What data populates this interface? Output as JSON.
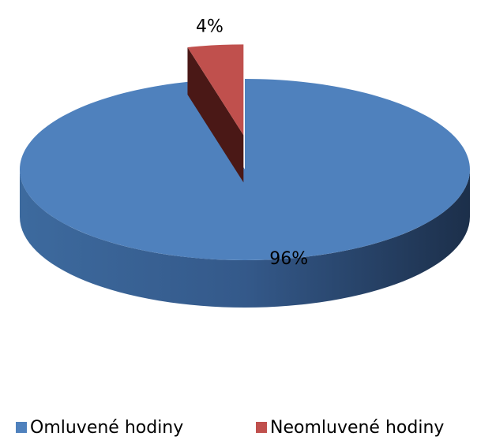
{
  "chart_data": {
    "type": "pie",
    "categories": [
      "Omluvené hodiny",
      "Neomluvené hodiny"
    ],
    "values": [
      96,
      4
    ],
    "value_labels": [
      "96%",
      "4%"
    ],
    "colors": [
      "#4f81bd",
      "#c0504d"
    ],
    "legend": "bottom"
  }
}
